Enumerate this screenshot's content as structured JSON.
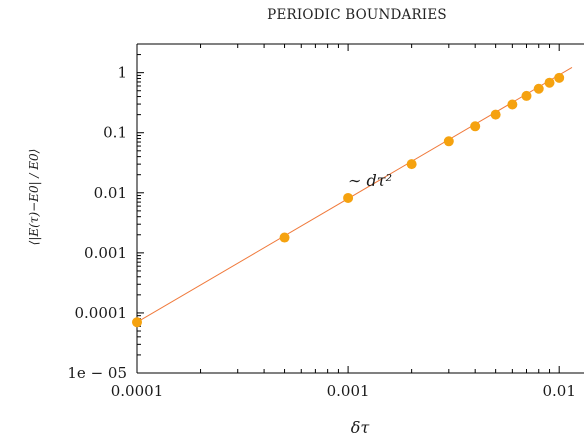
{
  "chart_data": {
    "type": "scatter",
    "title": "PERIODIC BOUNDARIES",
    "xlabel": "δτ",
    "ylabel": "⟨|E(τ)−E0| / E0⟩",
    "xscale": "log",
    "yscale": "log",
    "xlim": [
      0.0001,
      0.0115
    ],
    "ylim": [
      1e-05,
      3
    ],
    "xticks": [
      {
        "value": 0.0001,
        "label": "0.0001"
      },
      {
        "value": 0.001,
        "label": "0.001"
      },
      {
        "value": 0.01,
        "label": "0.01"
      }
    ],
    "yticks": [
      {
        "value": 1e-05,
        "label": "1e − 05"
      },
      {
        "value": 0.0001,
        "label": "0.0001"
      },
      {
        "value": 0.001,
        "label": "0.001"
      },
      {
        "value": 0.01,
        "label": "0.01"
      },
      {
        "value": 0.1,
        "label": "0.1"
      },
      {
        "value": 1,
        "label": "1"
      }
    ],
    "annotation": "∼ dτ²",
    "series": [
      {
        "style": "points",
        "color": "#f5a20f",
        "x": [
          0.0001,
          0.0005,
          0.001,
          0.002,
          0.003,
          0.004,
          0.005,
          0.006,
          0.007,
          0.008,
          0.009,
          0.01
        ],
        "y": [
          7e-05,
          0.0018,
          0.0082,
          0.03,
          0.072,
          0.128,
          0.2,
          0.295,
          0.41,
          0.54,
          0.68,
          0.82
        ]
      },
      {
        "style": "line",
        "color": "#f07a3c",
        "x": [
          0.0001,
          0.0115
        ],
        "y": [
          7e-05,
          1.22
        ]
      }
    ],
    "grid": false,
    "legend": "none"
  }
}
